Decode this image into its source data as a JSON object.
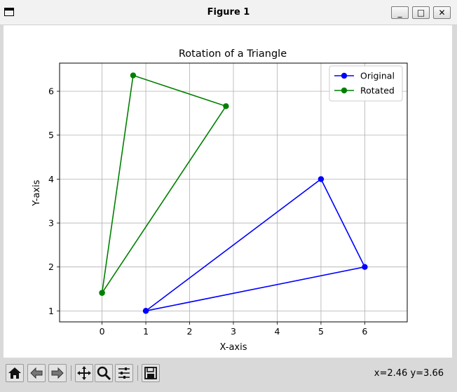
{
  "window": {
    "title": "Figure 1",
    "buttons": {
      "minimize": "_",
      "maximize": "□",
      "close": "✕"
    }
  },
  "toolbar": {
    "buttons": [
      "home-icon",
      "back-icon",
      "forward-icon",
      "pan-icon",
      "zoom-icon",
      "configure-icon",
      "save-icon"
    ],
    "coords": "x=2.46 y=3.66"
  },
  "chart_data": {
    "type": "line",
    "title": "Rotation of a Triangle",
    "xlabel": "X-axis",
    "ylabel": "Y-axis",
    "xlim": [
      -0.97,
      6.97
    ],
    "ylim": [
      0.75,
      6.64
    ],
    "xticks": [
      0,
      1,
      2,
      3,
      4,
      5,
      6
    ],
    "yticks": [
      1,
      2,
      3,
      4,
      5,
      6
    ],
    "grid": true,
    "legend": "top-right",
    "series": [
      {
        "name": "Original",
        "color": "#0000ff",
        "x": [
          1,
          5,
          6,
          1
        ],
        "y": [
          1,
          4,
          2,
          1
        ]
      },
      {
        "name": "Rotated",
        "color": "#008000",
        "x": [
          0,
          2.83,
          0.71,
          0
        ],
        "y": [
          1.41,
          5.66,
          6.36,
          1.41
        ]
      }
    ]
  }
}
